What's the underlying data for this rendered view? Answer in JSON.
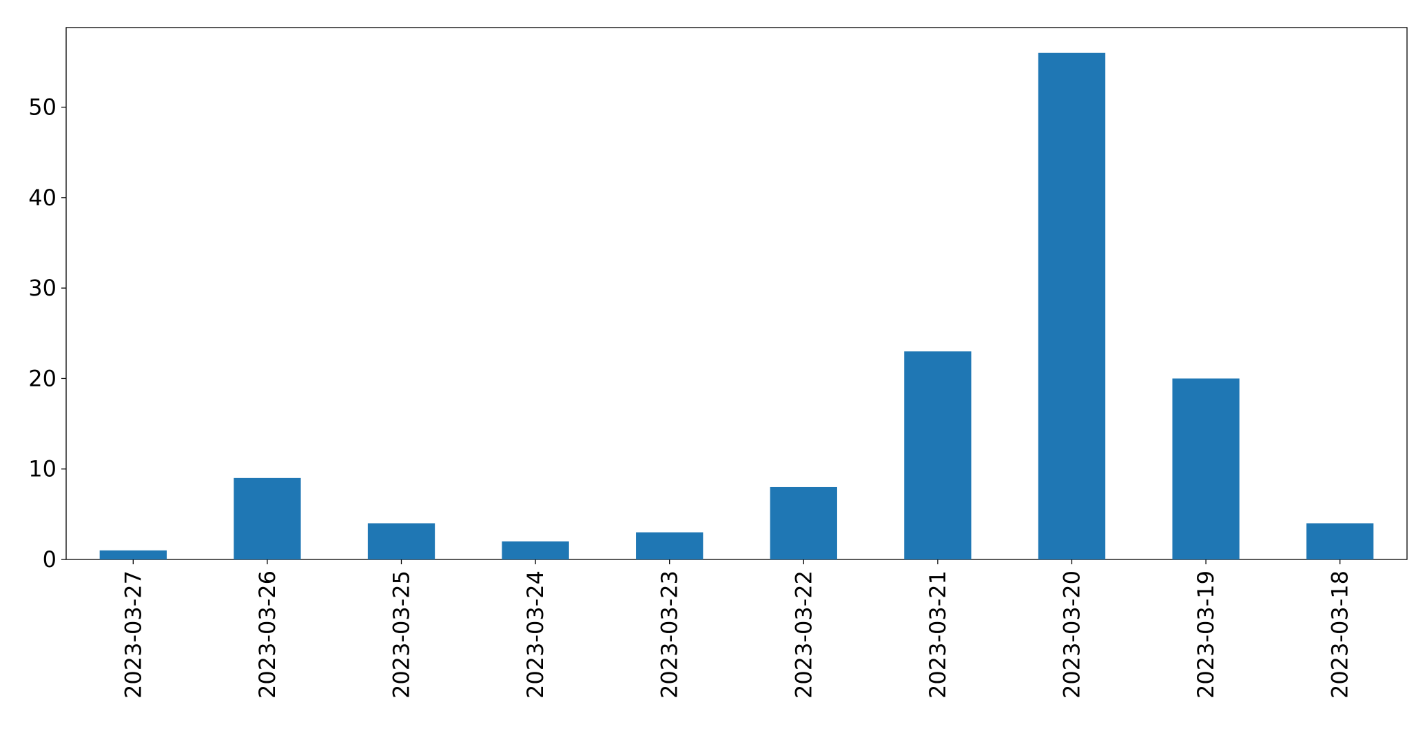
{
  "chart_data": {
    "type": "bar",
    "categories": [
      "2023-03-27",
      "2023-03-26",
      "2023-03-25",
      "2023-03-24",
      "2023-03-23",
      "2023-03-22",
      "2023-03-21",
      "2023-03-20",
      "2023-03-19",
      "2023-03-18"
    ],
    "values": [
      1,
      9,
      4,
      2,
      3,
      8,
      23,
      56,
      20,
      4
    ],
    "color": "#1f77b4",
    "ylim": [
      0,
      58.8
    ],
    "yticks": [
      0,
      10,
      20,
      30,
      40,
      50
    ],
    "grid": false
  }
}
